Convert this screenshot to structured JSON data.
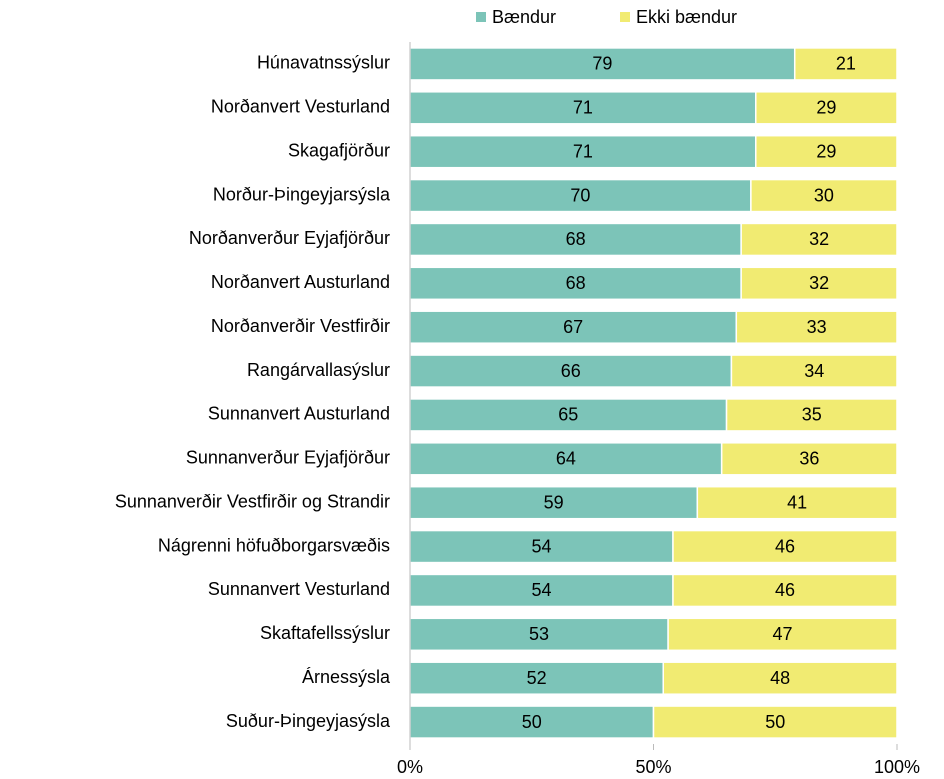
{
  "chart_data": {
    "type": "stacked_barh",
    "categories": [
      "Húnavatnssýslur",
      "Norðanvert Vesturland",
      "Skagafjörður",
      "Norður-Þingeyjarsýsla",
      "Norðanverður Eyjafjörður",
      "Norðanvert Austurland",
      "Norðanverðir Vestfirðir",
      "Rangárvallasýslur",
      "Sunnanvert Austurland",
      "Sunnanverður Eyjafjörður",
      "Sunnanverðir Vestfirðir og Strandir",
      "Nágrenni höfuðborgarsvæðis",
      "Sunnanvert Vesturland",
      "Skaftafellssýslur",
      "Árnessýsla",
      "Suður-Þingeyjasýsla"
    ],
    "series": [
      {
        "name": "Bændur",
        "color": "#7cc4b8",
        "values": [
          79,
          71,
          71,
          70,
          68,
          68,
          67,
          66,
          65,
          64,
          59,
          54,
          54,
          53,
          52,
          50
        ]
      },
      {
        "name": "Ekki bændur",
        "color": "#f1eb72",
        "values": [
          21,
          29,
          29,
          30,
          32,
          32,
          33,
          34,
          35,
          36,
          41,
          46,
          46,
          47,
          48,
          50
        ]
      }
    ],
    "xlim": [
      0,
      100
    ],
    "xticks": [
      {
        "value": 0,
        "label": "0%"
      },
      {
        "value": 50,
        "label": "50%"
      },
      {
        "value": 100,
        "label": "100%"
      }
    ],
    "legend": "top",
    "grid": false
  }
}
